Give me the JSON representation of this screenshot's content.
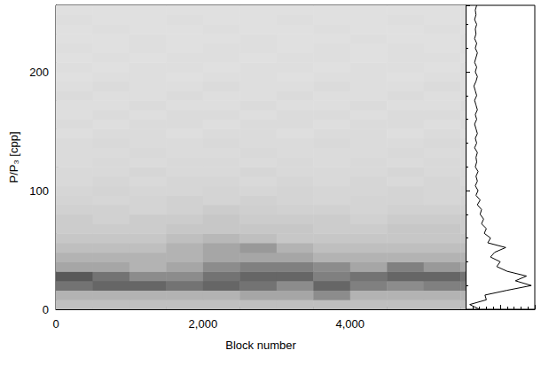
{
  "chart_data": [
    {
      "type": "heatmap",
      "xlabel": "Block number",
      "ylabel": "P/P₃ [cpp]",
      "xlim": [
        0,
        5570
      ],
      "ylim": [
        0,
        256
      ],
      "xticks": [
        0,
        2000,
        4000
      ],
      "yticks": [
        0,
        100,
        200
      ],
      "grid": false,
      "x_bins": [
        0,
        500,
        1000,
        1500,
        2000,
        2500,
        3000,
        3500,
        4000,
        4500,
        5000,
        5500,
        5570
      ],
      "y_bins": [
        0,
        8,
        16,
        24,
        32,
        40,
        48,
        56,
        64,
        72,
        80,
        88,
        96,
        104,
        112,
        120,
        128,
        136,
        144,
        152,
        160,
        168,
        176,
        184,
        192,
        200,
        208,
        216,
        224,
        232,
        240,
        248,
        256
      ],
      "color_range": [
        0,
        1
      ],
      "cells": [
        [
          0.25,
          0.25,
          0.25,
          0.25,
          0.25,
          0.25,
          0.25,
          0.25,
          0.25,
          0.25,
          0.25,
          0.25
        ],
        [
          0.3,
          0.3,
          0.3,
          0.3,
          0.3,
          0.35,
          0.35,
          0.45,
          0.3,
          0.3,
          0.3,
          0.3
        ],
        [
          0.55,
          0.6,
          0.6,
          0.55,
          0.6,
          0.55,
          0.45,
          0.6,
          0.5,
          0.45,
          0.5,
          0.5
        ],
        [
          0.65,
          0.55,
          0.45,
          0.45,
          0.55,
          0.6,
          0.6,
          0.5,
          0.55,
          0.6,
          0.6,
          0.55
        ],
        [
          0.35,
          0.35,
          0.3,
          0.35,
          0.45,
          0.5,
          0.5,
          0.45,
          0.35,
          0.5,
          0.4,
          0.35
        ],
        [
          0.3,
          0.3,
          0.3,
          0.3,
          0.35,
          0.35,
          0.35,
          0.3,
          0.3,
          0.3,
          0.3,
          0.3
        ],
        [
          0.25,
          0.25,
          0.25,
          0.3,
          0.35,
          0.4,
          0.3,
          0.25,
          0.25,
          0.25,
          0.25,
          0.25
        ],
        [
          0.22,
          0.22,
          0.22,
          0.25,
          0.28,
          0.25,
          0.22,
          0.22,
          0.22,
          0.22,
          0.22,
          0.22
        ],
        [
          0.2,
          0.2,
          0.2,
          0.22,
          0.22,
          0.22,
          0.22,
          0.2,
          0.2,
          0.22,
          0.22,
          0.2
        ],
        [
          0.2,
          0.18,
          0.2,
          0.2,
          0.22,
          0.2,
          0.2,
          0.2,
          0.18,
          0.2,
          0.2,
          0.2
        ],
        [
          0.18,
          0.18,
          0.17,
          0.18,
          0.2,
          0.19,
          0.18,
          0.18,
          0.17,
          0.18,
          0.18,
          0.18
        ],
        [
          0.17,
          0.16,
          0.17,
          0.18,
          0.17,
          0.18,
          0.17,
          0.16,
          0.17,
          0.17,
          0.16,
          0.17
        ],
        [
          0.16,
          0.17,
          0.16,
          0.16,
          0.17,
          0.16,
          0.17,
          0.16,
          0.16,
          0.17,
          0.16,
          0.16
        ],
        [
          0.15,
          0.16,
          0.15,
          0.16,
          0.16,
          0.15,
          0.16,
          0.15,
          0.16,
          0.15,
          0.16,
          0.15
        ],
        [
          0.15,
          0.15,
          0.16,
          0.15,
          0.15,
          0.16,
          0.15,
          0.15,
          0.15,
          0.16,
          0.15,
          0.15
        ],
        [
          0.14,
          0.15,
          0.14,
          0.15,
          0.15,
          0.14,
          0.15,
          0.14,
          0.15,
          0.14,
          0.15,
          0.14
        ],
        [
          0.14,
          0.14,
          0.15,
          0.14,
          0.14,
          0.15,
          0.14,
          0.14,
          0.14,
          0.15,
          0.14,
          0.14
        ],
        [
          0.14,
          0.15,
          0.14,
          0.14,
          0.15,
          0.14,
          0.14,
          0.15,
          0.14,
          0.14,
          0.15,
          0.14
        ],
        [
          0.13,
          0.14,
          0.14,
          0.13,
          0.14,
          0.14,
          0.13,
          0.14,
          0.14,
          0.13,
          0.14,
          0.13
        ],
        [
          0.14,
          0.13,
          0.14,
          0.14,
          0.13,
          0.14,
          0.14,
          0.13,
          0.14,
          0.14,
          0.13,
          0.14
        ],
        [
          0.13,
          0.14,
          0.13,
          0.14,
          0.14,
          0.13,
          0.14,
          0.14,
          0.13,
          0.14,
          0.14,
          0.13
        ],
        [
          0.13,
          0.13,
          0.14,
          0.13,
          0.13,
          0.14,
          0.13,
          0.13,
          0.14,
          0.13,
          0.13,
          0.14
        ],
        [
          0.14,
          0.13,
          0.13,
          0.14,
          0.13,
          0.13,
          0.14,
          0.13,
          0.13,
          0.14,
          0.13,
          0.13
        ],
        [
          0.13,
          0.14,
          0.13,
          0.13,
          0.14,
          0.13,
          0.13,
          0.14,
          0.13,
          0.13,
          0.14,
          0.13
        ],
        [
          0.12,
          0.13,
          0.13,
          0.12,
          0.13,
          0.13,
          0.12,
          0.13,
          0.13,
          0.12,
          0.13,
          0.13
        ],
        [
          0.13,
          0.12,
          0.13,
          0.13,
          0.12,
          0.13,
          0.13,
          0.12,
          0.13,
          0.13,
          0.12,
          0.13
        ],
        [
          0.12,
          0.13,
          0.12,
          0.13,
          0.13,
          0.12,
          0.13,
          0.13,
          0.12,
          0.13,
          0.13,
          0.12
        ],
        [
          0.13,
          0.12,
          0.13,
          0.12,
          0.13,
          0.13,
          0.12,
          0.13,
          0.12,
          0.13,
          0.12,
          0.13
        ],
        [
          0.12,
          0.12,
          0.13,
          0.12,
          0.12,
          0.13,
          0.12,
          0.12,
          0.13,
          0.12,
          0.12,
          0.13
        ],
        [
          0.12,
          0.13,
          0.12,
          0.12,
          0.13,
          0.12,
          0.12,
          0.13,
          0.12,
          0.12,
          0.13,
          0.12
        ],
        [
          0.13,
          0.12,
          0.12,
          0.13,
          0.12,
          0.12,
          0.13,
          0.12,
          0.12,
          0.13,
          0.12,
          0.12
        ],
        [
          0.12,
          0.12,
          0.12,
          0.12,
          0.12,
          0.12,
          0.12,
          0.12,
          0.12,
          0.12,
          0.12,
          0.12
        ]
      ]
    },
    {
      "type": "line",
      "orientation": "horizontal",
      "tick_labels": false,
      "color": "#000000",
      "xlim": [
        0,
        1
      ],
      "ylim": [
        0,
        256
      ],
      "xticks": [
        0,
        0.5,
        1
      ],
      "yticks": [
        0,
        100,
        200
      ],
      "y": [
        0,
        4,
        8,
        12,
        16,
        20,
        24,
        28,
        32,
        36,
        40,
        44,
        48,
        52,
        56,
        60,
        64,
        68,
        72,
        76,
        80,
        84,
        88,
        92,
        96,
        100,
        104,
        108,
        112,
        116,
        120,
        124,
        128,
        132,
        136,
        140,
        144,
        148,
        152,
        156,
        160,
        164,
        168,
        172,
        176,
        180,
        184,
        188,
        192,
        196,
        200,
        204,
        208,
        212,
        216,
        220,
        224,
        228,
        232,
        236,
        240,
        244,
        248,
        252,
        256
      ],
      "values": [
        0.2,
        0.06,
        0.3,
        0.28,
        0.6,
        0.95,
        0.72,
        0.88,
        0.6,
        0.45,
        0.5,
        0.36,
        0.42,
        0.58,
        0.32,
        0.36,
        0.27,
        0.3,
        0.23,
        0.26,
        0.21,
        0.23,
        0.17,
        0.21,
        0.15,
        0.18,
        0.14,
        0.17,
        0.15,
        0.18,
        0.14,
        0.16,
        0.15,
        0.17,
        0.13,
        0.16,
        0.14,
        0.17,
        0.15,
        0.13,
        0.16,
        0.14,
        0.17,
        0.15,
        0.13,
        0.16,
        0.14,
        0.12,
        0.15,
        0.17,
        0.14,
        0.16,
        0.13,
        0.15,
        0.17,
        0.14,
        0.16,
        0.13,
        0.15,
        0.14,
        0.16,
        0.13,
        0.15,
        0.14,
        0.16
      ]
    }
  ]
}
